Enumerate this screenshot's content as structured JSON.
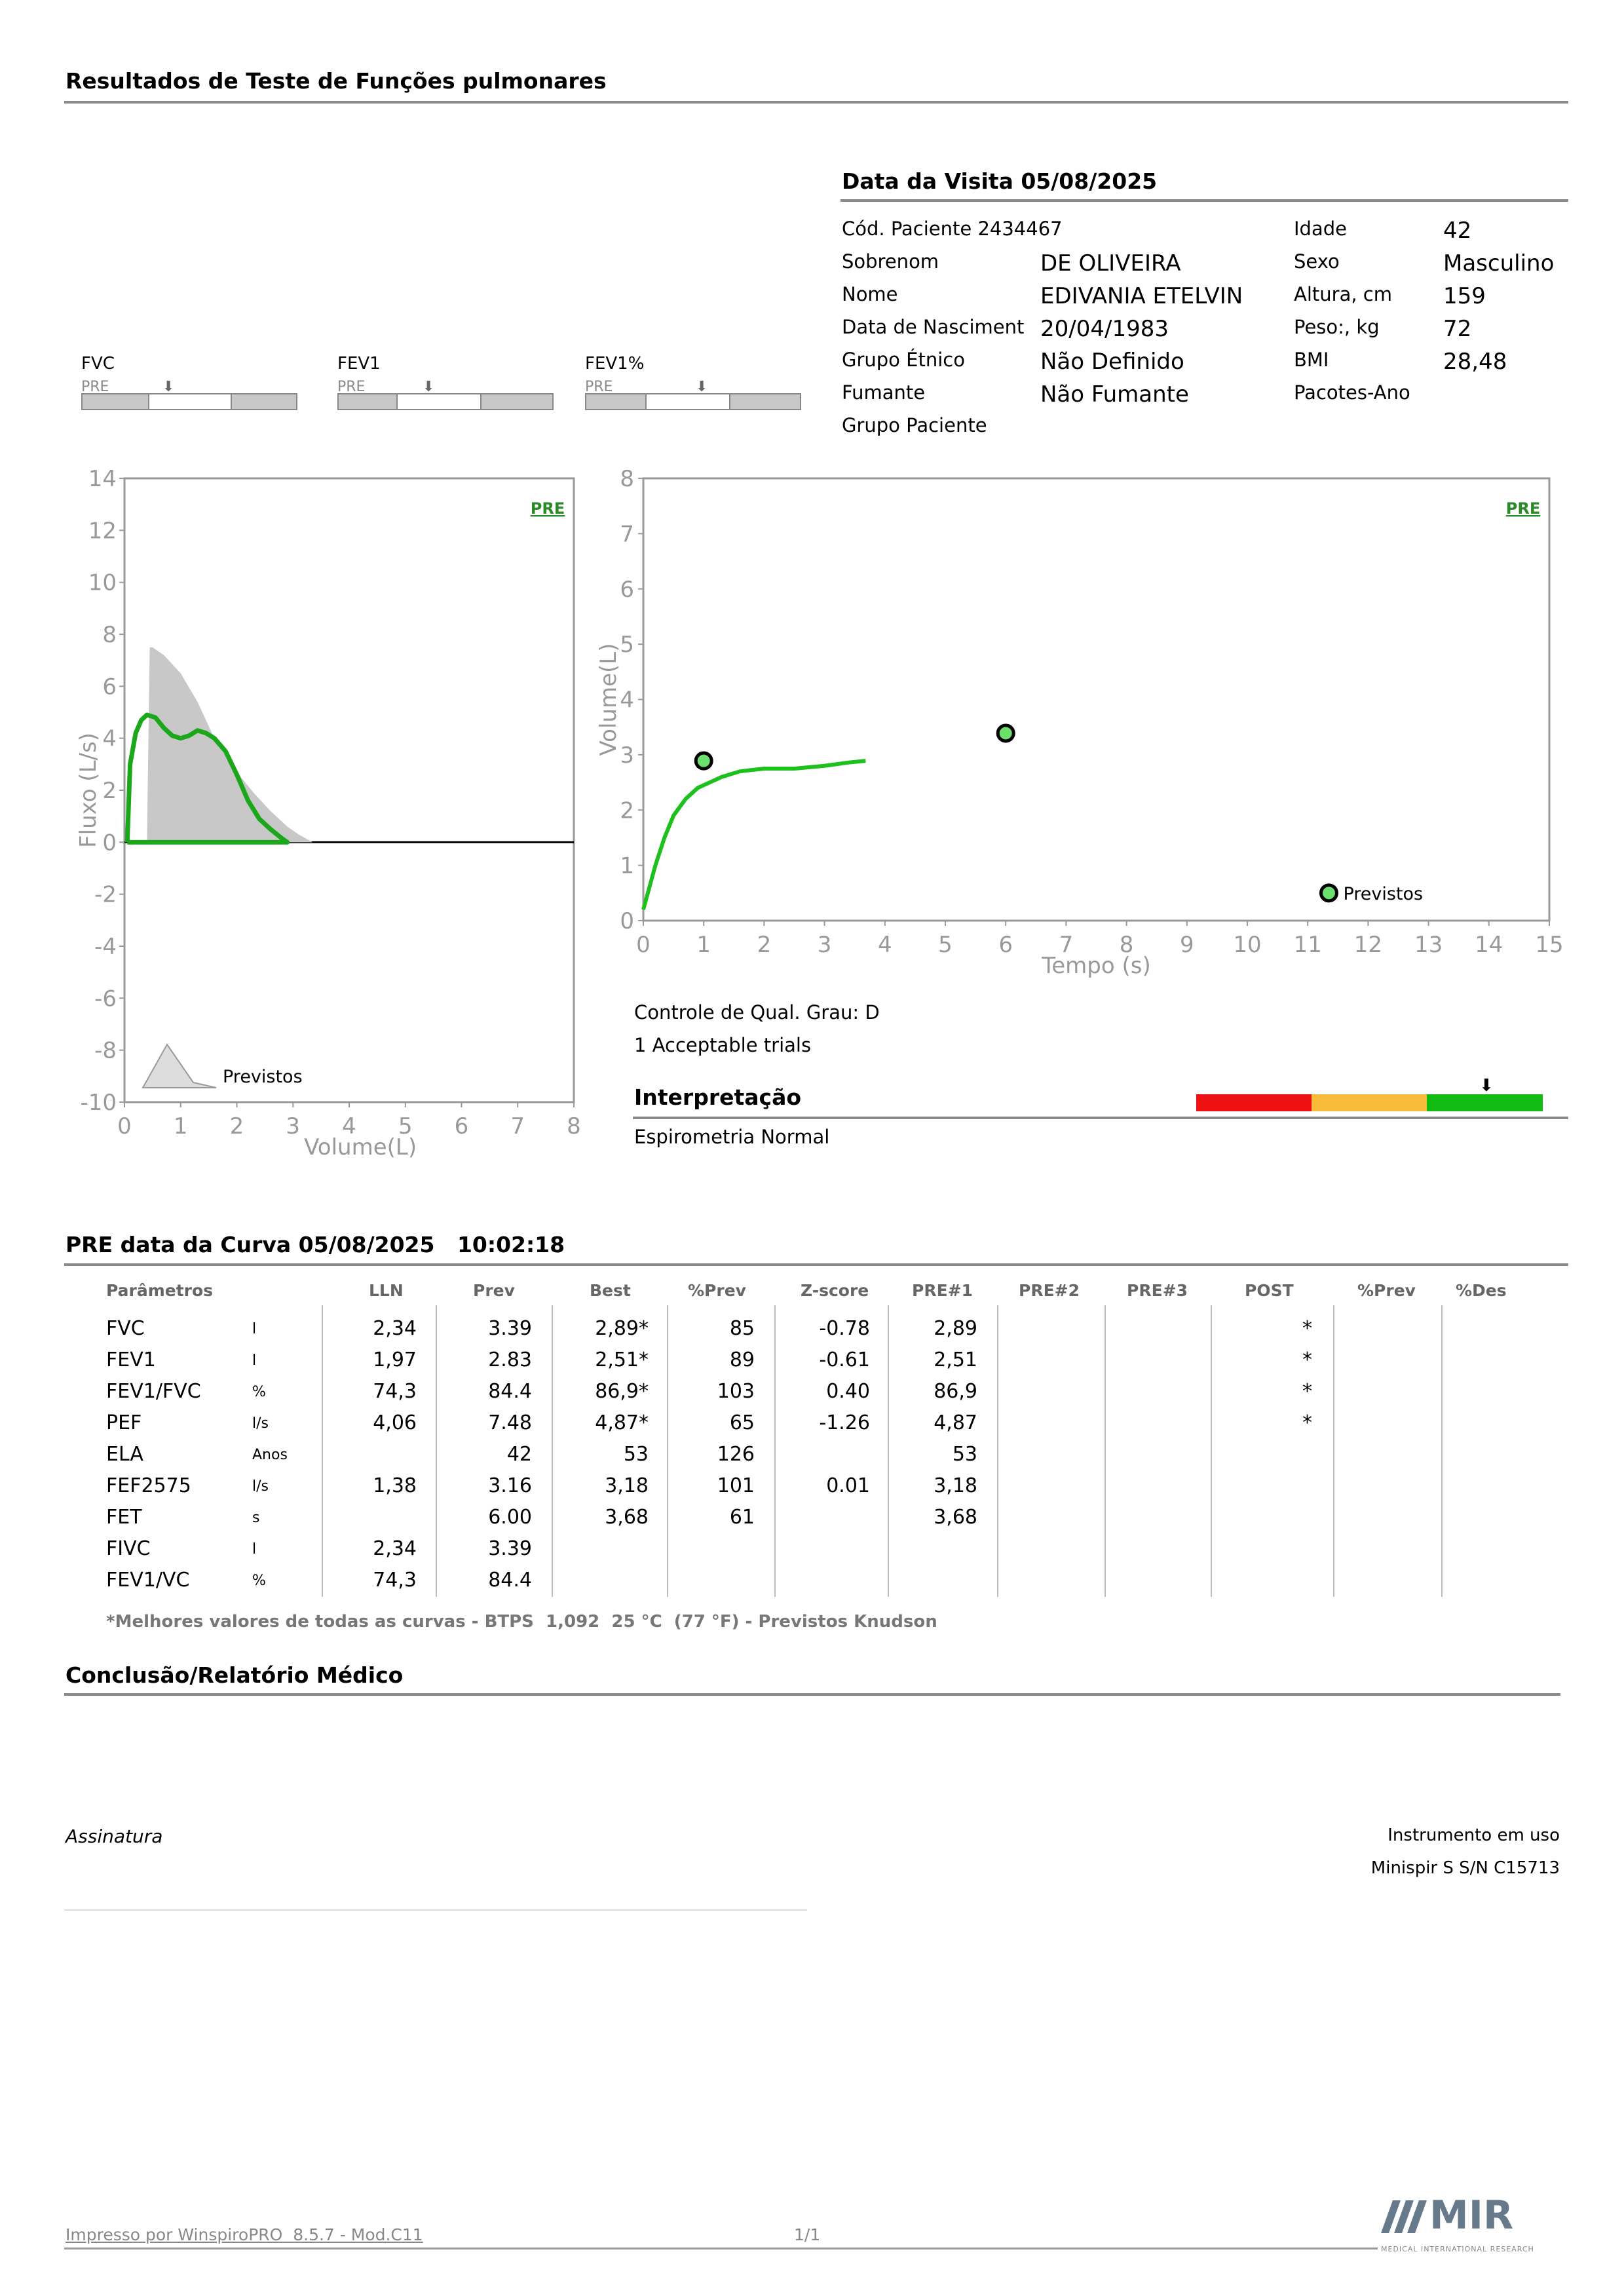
{
  "header": {
    "title": "Resultados de Teste de Funções pulmonares"
  },
  "visit": {
    "title": "Data da Visita 05/08/2025"
  },
  "patient": {
    "code_label": "Cód. Paciente 2434467",
    "surname_label": "Sobrenom",
    "surname": "DE OLIVEIRA",
    "name_label": "Nome",
    "name": "EDIVANIA ETELVIN",
    "dob_label": "Data de Nasciment",
    "dob": "20/04/1983",
    "ethnic_label": "Grupo Étnico",
    "ethnic": "Não Definido",
    "smoker_label": "Fumante",
    "smoker": "Não Fumante",
    "group_label": "Grupo Paciente",
    "age_label": "Idade",
    "age": "42",
    "sex_label": "Sexo",
    "sex": "Masculino",
    "height_label": "Altura, cm",
    "height": "159",
    "weight_label": "Peso:, kg",
    "weight": "72",
    "bmi_label": "BMI",
    "bmi": "28,48",
    "packs_label": "Pacotes-Ano"
  },
  "gauges": [
    {
      "name": "FVC",
      "sub": "PRE"
    },
    {
      "name": "FEV1",
      "sub": "PRE"
    },
    {
      "name": "FEV1%",
      "sub": "PRE"
    }
  ],
  "chart_data": [
    {
      "type": "area",
      "xlabel": "Volume(L)",
      "ylabel": "Fluxo (L/s)",
      "xlim": [
        0,
        8
      ],
      "ylim": [
        -10,
        14
      ],
      "xticks": [
        "0",
        "1",
        "2",
        "3",
        "4",
        "5",
        "6",
        "7",
        "8"
      ],
      "yticks": [
        "14",
        "12",
        "10",
        "8",
        "6",
        "4",
        "2",
        "0",
        "-2",
        "-4",
        "-6",
        "-8",
        "-10"
      ],
      "badge": "PRE",
      "legend": "Previstos",
      "series": [
        {
          "name": "Previstos",
          "color": "#c8c8c8",
          "x": [
            0.4,
            0.45,
            0.5,
            0.7,
            1.0,
            1.3,
            1.6,
            2.0,
            2.3,
            2.6,
            2.9,
            3.1,
            3.35
          ],
          "y": [
            0,
            7.5,
            7.5,
            7.2,
            6.5,
            5.4,
            4.0,
            2.7,
            1.9,
            1.2,
            0.6,
            0.3,
            0
          ]
        },
        {
          "name": "PRE",
          "color": "#1aa81a",
          "x": [
            0.05,
            0.1,
            0.2,
            0.3,
            0.4,
            0.55,
            0.7,
            0.85,
            1.0,
            1.15,
            1.3,
            1.45,
            1.6,
            1.8,
            2.0,
            2.2,
            2.4,
            2.6,
            2.8,
            2.9,
            2.6,
            2.0,
            1.0,
            0.05
          ],
          "y": [
            0,
            3.0,
            4.2,
            4.7,
            4.9,
            4.8,
            4.4,
            4.1,
            4.0,
            4.1,
            4.3,
            4.2,
            4.0,
            3.5,
            2.6,
            1.6,
            0.9,
            0.5,
            0.15,
            0,
            0,
            0,
            0,
            0
          ]
        }
      ]
    },
    {
      "type": "line",
      "xlabel": "Tempo (s)",
      "ylabel": "Volume(L)",
      "xlim": [
        0,
        15
      ],
      "ylim": [
        0,
        8
      ],
      "xticks": [
        "0",
        "1",
        "2",
        "3",
        "4",
        "5",
        "6",
        "7",
        "8",
        "9",
        "10",
        "11",
        "12",
        "13",
        "14",
        "15"
      ],
      "yticks": [
        "8",
        "7",
        "6",
        "5",
        "4",
        "3",
        "2",
        "1",
        "0"
      ],
      "badge": "PRE",
      "legend": "Previstos",
      "points": [
        {
          "x": 1.0,
          "y": 2.89
        },
        {
          "x": 6.0,
          "y": 3.39
        }
      ],
      "series": [
        {
          "name": "PRE",
          "color": "#1ec01e",
          "x": [
            0,
            0.1,
            0.2,
            0.35,
            0.5,
            0.7,
            0.9,
            1.1,
            1.3,
            1.6,
            2.0,
            2.5,
            3.0,
            3.4,
            3.68
          ],
          "y": [
            0.2,
            0.6,
            1.0,
            1.5,
            1.9,
            2.2,
            2.4,
            2.5,
            2.6,
            2.7,
            2.75,
            2.75,
            2.8,
            2.86,
            2.89
          ]
        }
      ]
    }
  ],
  "quality": {
    "grade": "Controle de Qual. Grau: D",
    "trials": "1 Acceptable trials"
  },
  "interpretation": {
    "title": "Interpretação",
    "text": "Espirometria Normal",
    "colors": [
      "#ee1111",
      "#f9bb3c",
      "#11bb11"
    ]
  },
  "curve": {
    "title": "PRE data da Curva 05/08/2025   10:02:18"
  },
  "table": {
    "headers": [
      "Parâmetros",
      "",
      "LLN",
      "Prev",
      "Best",
      "%Prev",
      "Z-score",
      "PRE#1",
      "PRE#2",
      "PRE#3",
      "POST",
      "%Prev",
      "%Des"
    ],
    "rows": [
      [
        "FVC",
        "l",
        "2,34",
        "3.39",
        "2,89*",
        "85",
        "-0.78",
        "2,89",
        "",
        "",
        "*",
        "",
        ""
      ],
      [
        "FEV1",
        "l",
        "1,97",
        "2.83",
        "2,51*",
        "89",
        "-0.61",
        "2,51",
        "",
        "",
        "*",
        "",
        ""
      ],
      [
        "FEV1/FVC",
        "%",
        "74,3",
        "84.4",
        "86,9*",
        "103",
        "0.40",
        "86,9",
        "",
        "",
        "*",
        "",
        ""
      ],
      [
        "PEF",
        "l/s",
        "4,06",
        "7.48",
        "4,87*",
        "65",
        "-1.26",
        "4,87",
        "",
        "",
        "*",
        "",
        ""
      ],
      [
        "ELA",
        "Anos",
        "",
        "42",
        "53",
        "126",
        "",
        "53",
        "",
        "",
        "",
        "",
        ""
      ],
      [
        "FEF2575",
        "l/s",
        "1,38",
        "3.16",
        "3,18",
        "101",
        "0.01",
        "3,18",
        "",
        "",
        "",
        "",
        ""
      ],
      [
        "FET",
        "s",
        "",
        "6.00",
        "3,68",
        "61",
        "",
        "3,68",
        "",
        "",
        "",
        "",
        ""
      ],
      [
        "FIVC",
        "l",
        "2,34",
        "3.39",
        "",
        "",
        "",
        "",
        "",
        "",
        "",
        "",
        ""
      ],
      [
        "FEV1/VC",
        "%",
        "74,3",
        "84.4",
        "",
        "",
        "",
        "",
        "",
        "",
        "",
        "",
        ""
      ]
    ],
    "footnote": "*Melhores valores de todas as curvas - BTPS  1,092  25 °C  (77 °F) - Previstos Knudson"
  },
  "conclusion": {
    "title": "Conclusão/Relatório Médico"
  },
  "signature": {
    "label": "Assinatura"
  },
  "instrument": {
    "label": "Instrumento em uso",
    "value": "Minispir S S/N C15713"
  },
  "footer": {
    "printed": "Impresso por WinspiroPRO  8.5.7 - Mod.C11",
    "page": "1/1",
    "logo_text": "MIR",
    "logo_sub": "MEDICAL INTERNATIONAL RESEARCH"
  }
}
